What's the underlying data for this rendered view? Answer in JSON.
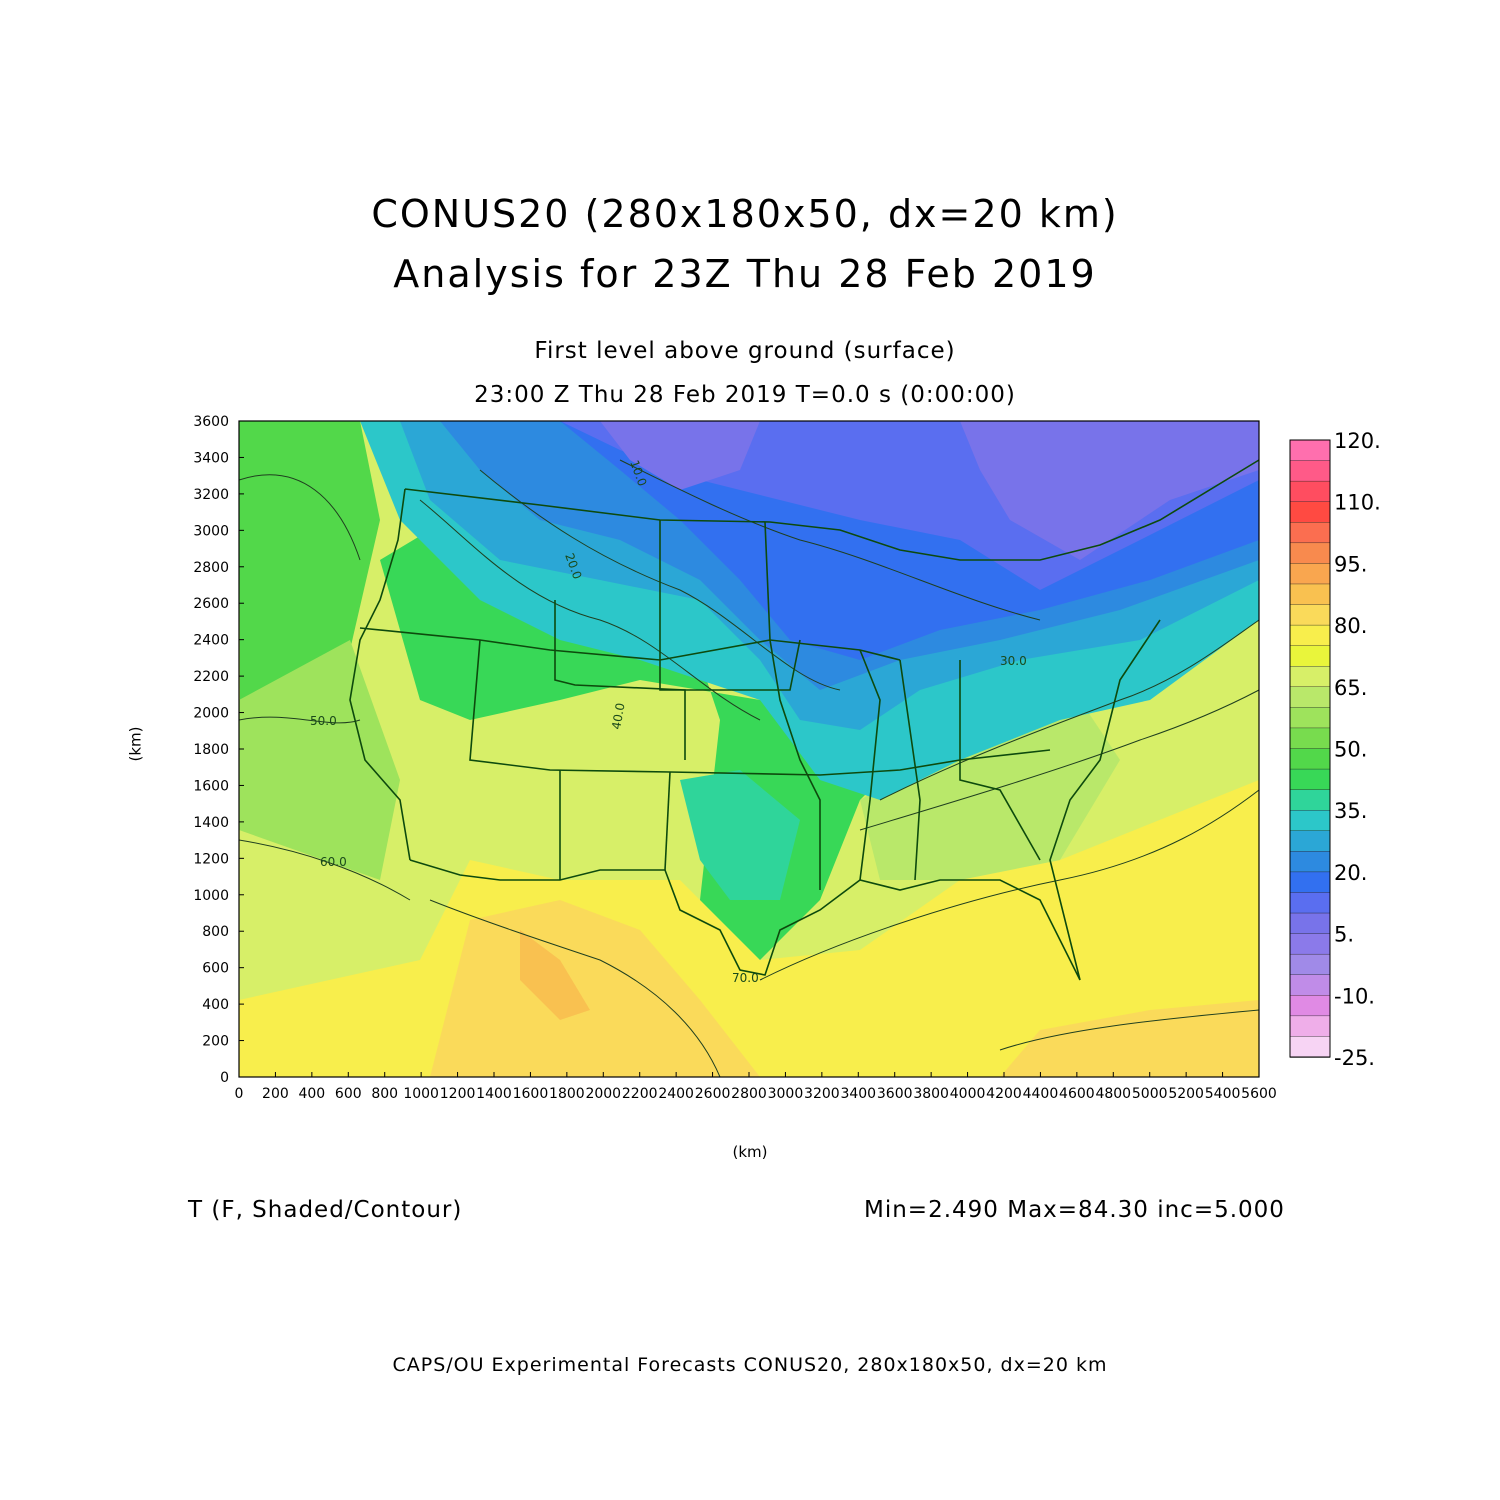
{
  "title": {
    "line1": "CONUS20 (280x180x50, dx=20 km)",
    "line2": "Analysis for 23Z Thu 28 Feb 2019"
  },
  "subtitle": {
    "line1": "First level above ground (surface)",
    "line2": "23:00 Z Thu 28 Feb 2019    T=0.0 s (0:00:00)"
  },
  "axes": {
    "xlabel": "(km)",
    "ylabel": "(km)",
    "x_ticks": [
      "0",
      "200",
      "400",
      "600",
      "800",
      "1000",
      "1200",
      "1400",
      "1600",
      "1800",
      "2000",
      "2200",
      "2400",
      "2600",
      "2800",
      "3000",
      "3200",
      "3400",
      "3600",
      "3800",
      "4000",
      "4200",
      "4400",
      "4600",
      "4800",
      "5000",
      "5200",
      "5400",
      "5600"
    ],
    "y_ticks": [
      "0",
      "200",
      "400",
      "600",
      "800",
      "1000",
      "1200",
      "1400",
      "1600",
      "1800",
      "2000",
      "2200",
      "2400",
      "2600",
      "2800",
      "3000",
      "3200",
      "3400",
      "3600"
    ],
    "xlim": [
      0,
      5600
    ],
    "ylim": [
      0,
      3600
    ]
  },
  "colorbar": {
    "labels": [
      "120.",
      "110.",
      "95.",
      "80.",
      "65.",
      "50.",
      "35.",
      "20.",
      "5.",
      "-10.",
      "-25."
    ],
    "range": [
      -25,
      120
    ],
    "step": 5,
    "colors": [
      "#ff6fae",
      "#ff5a88",
      "#ff4d60",
      "#ff4a42",
      "#fb6e50",
      "#f88a4e",
      "#f9a64f",
      "#f9c150",
      "#fada5a",
      "#f8ee4c",
      "#e9f53b",
      "#d7ef68",
      "#b9e86a",
      "#9ee35c",
      "#78dc4e",
      "#52d84a",
      "#38d857",
      "#2fd59a",
      "#2cc7c9",
      "#2ba7d6",
      "#2d8ae0",
      "#3270f0",
      "#5a6ef0",
      "#7873ea",
      "#8b7aea",
      "#a08ae8",
      "#c08ce8",
      "#e08ae4",
      "#efaee9",
      "#f7d4f4"
    ]
  },
  "legend": {
    "variable": "T (F, Shaded/Contour)",
    "stats": "Min=2.490  Max=84.30  inc=5.000"
  },
  "contour_labels": [
    "10.0",
    "20.0",
    "30.0",
    "40.0",
    "50.0",
    "60.0",
    "70.0"
  ],
  "footer": "CAPS/OU Experimental Forecasts  CONUS20, 280x180x50, dx=20 km"
}
